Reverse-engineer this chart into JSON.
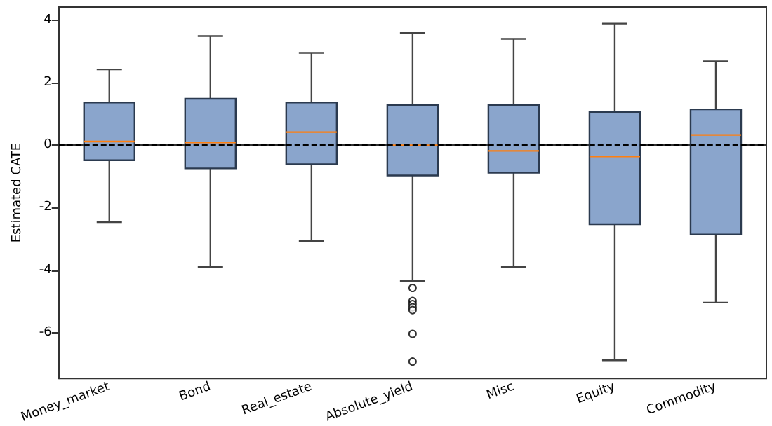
{
  "chart_data": {
    "type": "box",
    "ylabel": "Estimated CATE",
    "categories": [
      "Money_market",
      "Bond",
      "Real_estate",
      "Absolute_yield",
      "Misc",
      "Equity",
      "Commodity"
    ],
    "color": "#8aa5cc",
    "boxes": [
      {
        "low": -2.46,
        "q1": -0.48,
        "median": 0.12,
        "q3": 1.37,
        "high": 2.43
      },
      {
        "low": -3.9,
        "q1": -0.74,
        "median": 0.09,
        "q3": 1.49,
        "high": 3.5
      },
      {
        "low": -3.07,
        "q1": -0.61,
        "median": 0.42,
        "q3": 1.37,
        "high": 2.96
      },
      {
        "low": -4.35,
        "q1": -0.97,
        "median": 0.0,
        "q3": 1.29,
        "high": 3.6,
        "outliers": [
          -4.57,
          -4.99,
          -5.09,
          -5.19,
          -5.28,
          -6.04,
          -6.93
        ]
      },
      {
        "low": -3.9,
        "q1": -0.88,
        "median": -0.18,
        "q3": 1.29,
        "high": 3.41
      },
      {
        "low": -6.89,
        "q1": -2.53,
        "median": -0.36,
        "q3": 1.07,
        "high": 3.9
      },
      {
        "low": -5.04,
        "q1": -2.86,
        "median": 0.33,
        "q3": 1.15,
        "high": 2.69
      }
    ],
    "ylim": [
      -7.47,
      4.43
    ],
    "yticks": [
      -6,
      -4,
      -2,
      0,
      2,
      4
    ],
    "ref_lines": [
      {
        "axis": "y",
        "value": 0,
        "color": "#000000",
        "line_style": "dashed"
      }
    ],
    "grid": false
  }
}
